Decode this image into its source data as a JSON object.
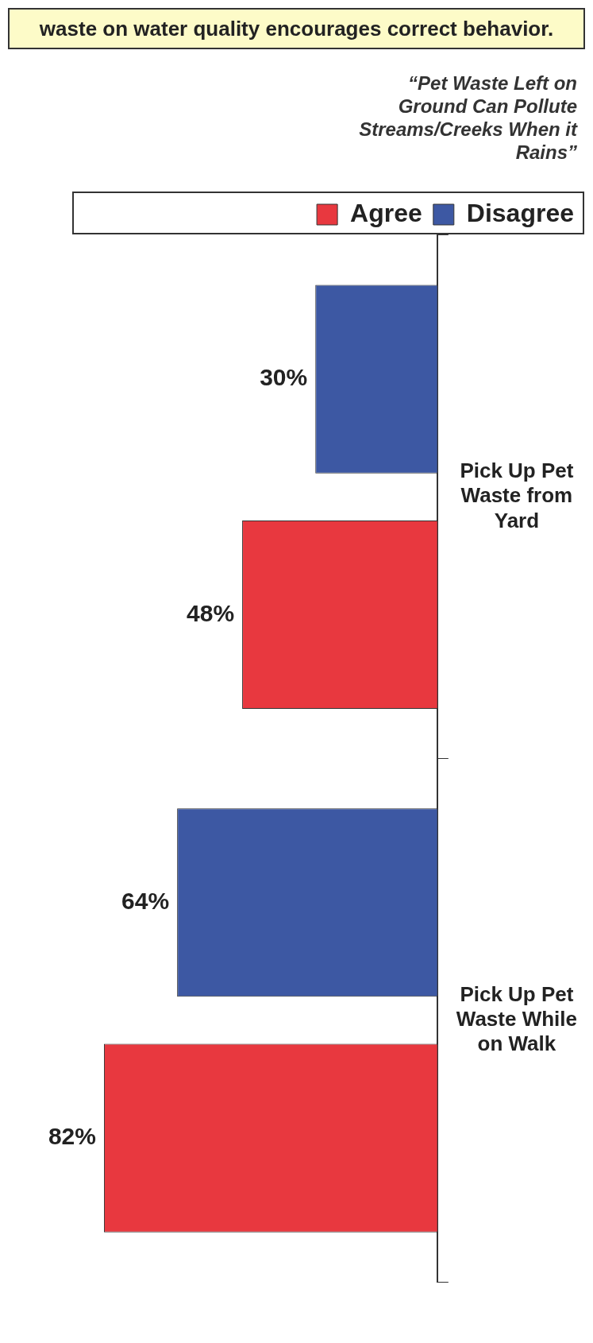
{
  "chart_data": {
    "type": "bar",
    "orientation": "horizontal",
    "title": "waste on water quality encourages correct behavior.",
    "categories": [
      "Pick Up Pet Waste from Yard",
      "Pick Up Pet Waste While on Walk"
    ],
    "series": [
      {
        "name": "Disagree",
        "color": "#3d58a3",
        "values": [
          30,
          64
        ],
        "value_labels": [
          "30%",
          "64%"
        ]
      },
      {
        "name": "Agree",
        "color": "#e8383f",
        "values": [
          48,
          82
        ],
        "value_labels": [
          "48%",
          "82%"
        ]
      }
    ],
    "annotations": [
      "“Pet Waste Left on Ground Can Pollute Streams/Creeks When it Rains”"
    ],
    "legend": "top right",
    "grid": false,
    "tick_labels": "y"
  }
}
